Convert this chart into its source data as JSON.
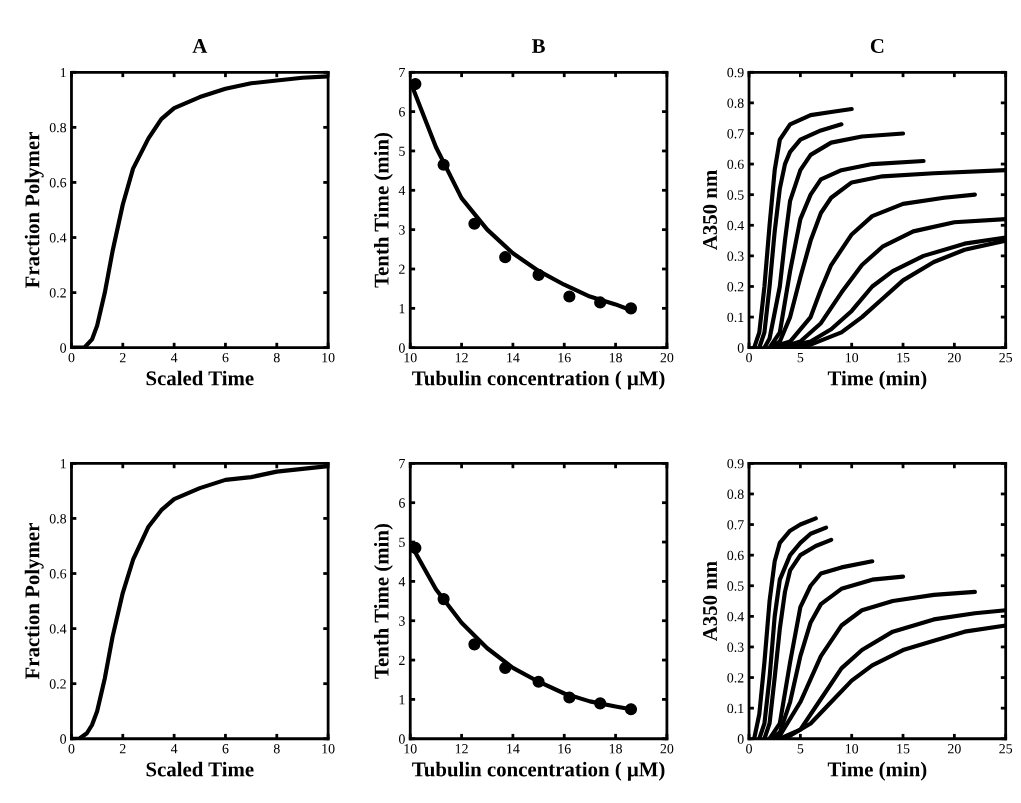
{
  "chart_data": [
    {
      "type": "line",
      "title": "A",
      "xlabel": "Scaled Time",
      "ylabel": "Fraction Polymer",
      "xlim": [
        0,
        10
      ],
      "ylim": [
        0,
        1
      ],
      "xticks": [
        0,
        2,
        4,
        6,
        8,
        10
      ],
      "yticks": [
        0,
        0.2,
        0.4,
        0.6,
        0.8,
        1
      ],
      "series": [
        {
          "type": "line",
          "color": "#000000",
          "x": [
            0,
            0.5,
            0.8,
            1,
            1.3,
            1.6,
            2,
            2.4,
            3,
            3.5,
            4,
            5,
            6,
            7,
            8,
            9,
            10
          ],
          "values": [
            0,
            0,
            0.03,
            0.08,
            0.2,
            0.35,
            0.52,
            0.65,
            0.76,
            0.83,
            0.87,
            0.91,
            0.94,
            0.96,
            0.97,
            0.98,
            0.985
          ]
        }
      ]
    },
    {
      "type": "line",
      "title": "B",
      "xlabel": "Tubulin concentration ( μM)",
      "ylabel": "Tenth Time (min)",
      "xlim": [
        10,
        20
      ],
      "ylim": [
        0,
        7
      ],
      "xticks": [
        10,
        12,
        14,
        16,
        18,
        20
      ],
      "yticks": [
        0,
        1,
        2,
        3,
        4,
        5,
        6,
        7
      ],
      "series": [
        {
          "type": "scatter",
          "marker": "circle",
          "color": "#000000",
          "x": [
            10.2,
            11.3,
            12.5,
            13.7,
            15,
            16.2,
            17.4,
            18.6
          ],
          "values": [
            6.7,
            4.65,
            3.15,
            2.3,
            1.85,
            1.3,
            1.15,
            1.0
          ]
        },
        {
          "type": "line",
          "color": "#000000",
          "x": [
            10.1,
            11,
            12,
            13,
            14,
            15,
            16,
            17,
            18,
            18.6
          ],
          "values": [
            6.6,
            5.1,
            3.8,
            3.0,
            2.4,
            1.95,
            1.6,
            1.3,
            1.1,
            0.95
          ]
        }
      ]
    },
    {
      "type": "line",
      "title": "C",
      "xlabel": "Time (min)",
      "ylabel": "A350 nm",
      "xlim": [
        0,
        25
      ],
      "ylim": [
        0,
        0.9
      ],
      "xticks": [
        0,
        5,
        10,
        15,
        20,
        25
      ],
      "yticks": [
        0,
        0.1,
        0.2,
        0.3,
        0.4,
        0.5,
        0.6,
        0.7,
        0.8,
        0.9
      ],
      "series": [
        {
          "type": "line",
          "color": "#000000",
          "x": [
            0.5,
            1,
            1.5,
            2,
            2.5,
            3,
            4,
            6,
            8,
            10
          ],
          "values": [
            0,
            0.05,
            0.2,
            0.4,
            0.58,
            0.68,
            0.73,
            0.76,
            0.77,
            0.78
          ]
        },
        {
          "type": "line",
          "color": "#000000",
          "x": [
            1,
            1.5,
            2,
            2.5,
            3,
            3.5,
            4,
            5,
            7,
            9
          ],
          "values": [
            0,
            0.05,
            0.2,
            0.38,
            0.52,
            0.6,
            0.64,
            0.68,
            0.71,
            0.73
          ]
        },
        {
          "type": "line",
          "color": "#000000",
          "x": [
            1.5,
            2,
            3,
            3.5,
            4,
            5,
            6,
            8,
            11,
            15
          ],
          "values": [
            0,
            0.03,
            0.2,
            0.35,
            0.48,
            0.58,
            0.63,
            0.67,
            0.69,
            0.7
          ]
        },
        {
          "type": "line",
          "color": "#000000",
          "x": [
            2,
            3,
            4,
            5,
            6,
            7,
            9,
            12,
            17
          ],
          "values": [
            0,
            0.05,
            0.25,
            0.42,
            0.5,
            0.55,
            0.58,
            0.6,
            0.61
          ]
        },
        {
          "type": "line",
          "color": "#000000",
          "x": [
            2,
            3,
            4,
            5,
            6,
            7,
            8,
            10,
            13,
            18,
            25
          ],
          "values": [
            0,
            0.02,
            0.1,
            0.23,
            0.35,
            0.44,
            0.49,
            0.54,
            0.56,
            0.57,
            0.58
          ]
        },
        {
          "type": "line",
          "color": "#000000",
          "x": [
            2,
            4,
            6,
            7,
            8,
            10,
            12,
            15,
            19,
            22
          ],
          "values": [
            0,
            0.02,
            0.1,
            0.19,
            0.27,
            0.37,
            0.43,
            0.47,
            0.49,
            0.5
          ]
        },
        {
          "type": "line",
          "color": "#000000",
          "x": [
            3,
            5,
            7,
            9,
            11,
            13,
            16,
            20,
            25
          ],
          "values": [
            0,
            0.02,
            0.08,
            0.18,
            0.27,
            0.33,
            0.38,
            0.41,
            0.42
          ]
        },
        {
          "type": "line",
          "color": "#000000",
          "x": [
            3,
            6,
            8,
            10,
            12,
            14,
            17,
            21,
            25
          ],
          "values": [
            0,
            0.02,
            0.06,
            0.12,
            0.2,
            0.25,
            0.3,
            0.34,
            0.36
          ]
        },
        {
          "type": "line",
          "color": "#000000",
          "x": [
            3,
            6,
            9,
            11,
            13,
            15,
            18,
            21,
            25
          ],
          "values": [
            0,
            0.01,
            0.05,
            0.1,
            0.16,
            0.22,
            0.28,
            0.32,
            0.35
          ]
        }
      ]
    },
    {
      "type": "line",
      "xlabel": "Scaled Time",
      "ylabel": "Fraction Polymer",
      "xlim": [
        0,
        10
      ],
      "ylim": [
        0,
        1
      ],
      "xticks": [
        0,
        2,
        4,
        6,
        8,
        10
      ],
      "yticks": [
        0,
        0.2,
        0.4,
        0.6,
        0.8,
        1
      ],
      "series": [
        {
          "type": "line",
          "color": "#000000",
          "x": [
            0,
            0.3,
            0.6,
            0.8,
            1,
            1.3,
            1.6,
            2,
            2.4,
            3,
            3.5,
            4,
            5,
            6,
            7,
            8,
            9,
            10
          ],
          "values": [
            0,
            0,
            0.02,
            0.05,
            0.1,
            0.22,
            0.37,
            0.53,
            0.65,
            0.77,
            0.83,
            0.87,
            0.91,
            0.94,
            0.95,
            0.97,
            0.98,
            0.99
          ]
        }
      ]
    },
    {
      "type": "line",
      "xlabel": "Tubulin concentration ( μM)",
      "ylabel": "Tenth Time (min)",
      "xlim": [
        10,
        20
      ],
      "ylim": [
        0,
        7
      ],
      "xticks": [
        10,
        12,
        14,
        16,
        18,
        20
      ],
      "yticks": [
        0,
        1,
        2,
        3,
        4,
        5,
        6,
        7
      ],
      "series": [
        {
          "type": "scatter",
          "marker": "circle",
          "color": "#000000",
          "x": [
            10.2,
            11.3,
            12.5,
            13.7,
            15,
            16.2,
            17.4,
            18.6
          ],
          "values": [
            4.85,
            3.55,
            2.4,
            1.8,
            1.45,
            1.05,
            0.9,
            0.75
          ]
        },
        {
          "type": "line",
          "color": "#000000",
          "x": [
            10.1,
            11,
            12,
            13,
            14,
            15,
            16,
            17,
            18,
            18.6
          ],
          "values": [
            4.85,
            3.8,
            2.95,
            2.3,
            1.8,
            1.45,
            1.15,
            0.95,
            0.82,
            0.75
          ]
        }
      ]
    },
    {
      "type": "line",
      "xlabel": "Time (min)",
      "ylabel": "A350 nm",
      "xlim": [
        0,
        25
      ],
      "ylim": [
        0,
        0.9
      ],
      "xticks": [
        0,
        5,
        10,
        15,
        20,
        25
      ],
      "yticks": [
        0,
        0.1,
        0.2,
        0.3,
        0.4,
        0.5,
        0.6,
        0.7,
        0.8,
        0.9
      ],
      "series": [
        {
          "type": "line",
          "color": "#000000",
          "x": [
            0.5,
            1,
            1.5,
            2,
            2.5,
            3,
            4,
            5,
            6.5
          ],
          "values": [
            0,
            0.08,
            0.25,
            0.45,
            0.58,
            0.64,
            0.68,
            0.7,
            0.72
          ]
        },
        {
          "type": "line",
          "color": "#000000",
          "x": [
            1,
            1.5,
            2,
            2.5,
            3,
            4,
            5,
            6,
            7.5
          ],
          "values": [
            0,
            0.05,
            0.2,
            0.4,
            0.52,
            0.6,
            0.64,
            0.67,
            0.69
          ]
        },
        {
          "type": "line",
          "color": "#000000",
          "x": [
            1.5,
            2,
            2.5,
            3,
            3.5,
            4,
            5,
            6.5,
            8
          ],
          "values": [
            0,
            0.05,
            0.2,
            0.36,
            0.48,
            0.55,
            0.6,
            0.63,
            0.65
          ]
        },
        {
          "type": "line",
          "color": "#000000",
          "x": [
            2,
            3,
            4,
            5,
            6,
            7,
            9,
            12
          ],
          "values": [
            0,
            0.05,
            0.25,
            0.43,
            0.5,
            0.54,
            0.56,
            0.58
          ]
        },
        {
          "type": "line",
          "color": "#000000",
          "x": [
            2,
            3,
            4,
            5,
            6,
            7,
            9,
            12,
            15
          ],
          "values": [
            0,
            0.02,
            0.12,
            0.27,
            0.38,
            0.44,
            0.49,
            0.52,
            0.53
          ]
        },
        {
          "type": "line",
          "color": "#000000",
          "x": [
            2,
            3,
            5,
            7,
            9,
            11,
            14,
            18,
            22
          ],
          "values": [
            0,
            0.01,
            0.12,
            0.27,
            0.37,
            0.42,
            0.45,
            0.47,
            0.48
          ]
        },
        {
          "type": "line",
          "color": "#000000",
          "x": [
            3,
            5,
            7,
            9,
            11,
            14,
            18,
            22,
            25
          ],
          "values": [
            0,
            0.03,
            0.13,
            0.23,
            0.29,
            0.35,
            0.39,
            0.41,
            0.42
          ]
        },
        {
          "type": "line",
          "color": "#000000",
          "x": [
            3.5,
            6,
            8,
            10,
            12,
            15,
            18,
            21,
            25
          ],
          "values": [
            0,
            0.05,
            0.12,
            0.19,
            0.24,
            0.29,
            0.32,
            0.35,
            0.37
          ]
        }
      ]
    }
  ]
}
